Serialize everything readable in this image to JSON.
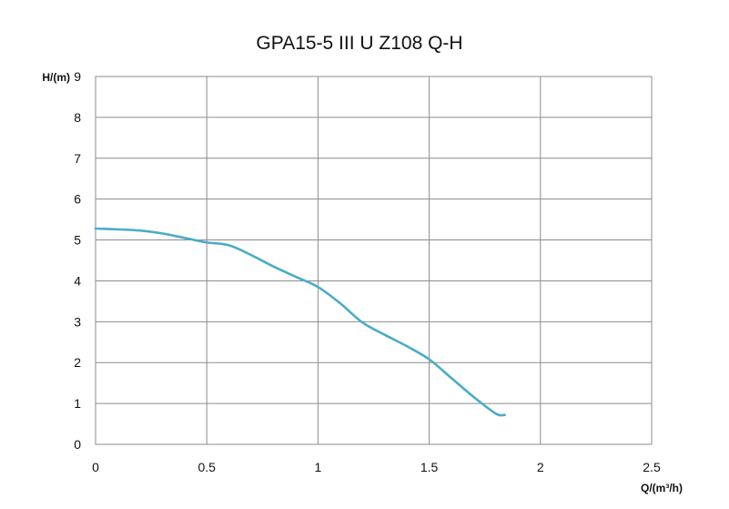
{
  "chart_data": {
    "type": "line",
    "title": "GPA15-5 III U Z108 Q-H",
    "xlabel": "Q/(m³/h)",
    "ylabel": "H/(m)",
    "xlim": [
      0,
      2.5
    ],
    "ylim": [
      0,
      9
    ],
    "x_ticks": [
      "0",
      "0.5",
      "1",
      "1.5",
      "2",
      "2.5"
    ],
    "y_ticks": [
      "0",
      "1",
      "2",
      "3",
      "4",
      "5",
      "6",
      "7",
      "8",
      "9"
    ],
    "grid": true,
    "series": [
      {
        "color": "#4aacc6",
        "x": [
          0,
          0.1,
          0.2,
          0.3,
          0.4,
          0.5,
          0.6,
          0.7,
          0.8,
          0.9,
          1.0,
          1.1,
          1.2,
          1.3,
          1.4,
          1.5,
          1.6,
          1.7,
          1.8,
          1.84
        ],
        "y": [
          5.28,
          5.26,
          5.23,
          5.16,
          5.05,
          4.94,
          4.87,
          4.63,
          4.35,
          4.1,
          3.85,
          3.45,
          2.98,
          2.68,
          2.4,
          2.08,
          1.62,
          1.16,
          0.75,
          0.72
        ]
      }
    ]
  }
}
